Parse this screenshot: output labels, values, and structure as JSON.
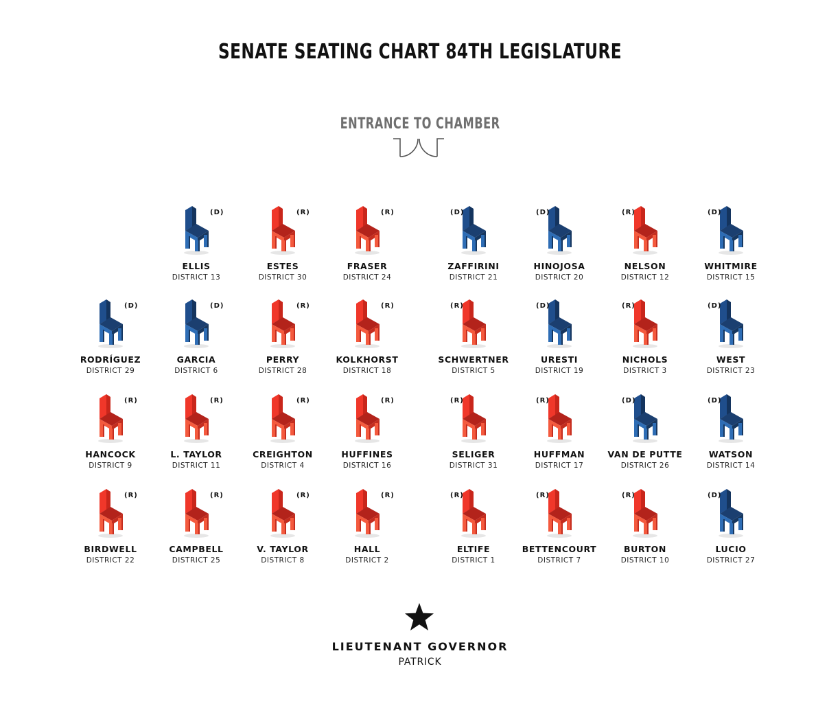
{
  "title": "SENATE SEATING CHART 84TH LEGISLATURE",
  "entrance_label": "ENTRANCE TO CHAMBER",
  "colors": {
    "democrat": "#1f4e8c",
    "republican": "#e8382a"
  },
  "rows": [
    [
      null,
      {
        "name": "ELLIS",
        "district": "DISTRICT 13",
        "party": "(D)"
      },
      {
        "name": "ESTES",
        "district": "DISTRICT 30",
        "party": "(R)"
      },
      {
        "name": "FRASER",
        "district": "DISTRICT 24",
        "party": "(R)"
      },
      {
        "name": "ZAFFIRINI",
        "district": "DISTRICT 21",
        "party": "(D)"
      },
      {
        "name": "HINOJOSA",
        "district": "DISTRICT 20",
        "party": "(D)"
      },
      {
        "name": "NELSON",
        "district": "DISTRICT 12",
        "party": "(R)"
      },
      {
        "name": "WHITMIRE",
        "district": "DISTRICT 15",
        "party": "(D)"
      }
    ],
    [
      {
        "name": "RODRÍGUEZ",
        "district": "DISTRICT 29",
        "party": "(D)"
      },
      {
        "name": "GARCIA",
        "district": "DISTRICT 6",
        "party": "(D)"
      },
      {
        "name": "PERRY",
        "district": "DISTRICT 28",
        "party": "(R)"
      },
      {
        "name": "KOLKHORST",
        "district": "DISTRICT 18",
        "party": "(R)"
      },
      {
        "name": "SCHWERTNER",
        "district": "DISTRICT 5",
        "party": "(R)"
      },
      {
        "name": "URESTI",
        "district": "DISTRICT 19",
        "party": "(D)"
      },
      {
        "name": "NICHOLS",
        "district": "DISTRICT 3",
        "party": "(R)"
      },
      {
        "name": "WEST",
        "district": "DISTRICT 23",
        "party": "(D)"
      }
    ],
    [
      {
        "name": "HANCOCK",
        "district": "DISTRICT 9",
        "party": "(R)"
      },
      {
        "name": "L. TAYLOR",
        "district": "DISTRICT 11",
        "party": "(R)"
      },
      {
        "name": "CREIGHTON",
        "district": "DISTRICT 4",
        "party": "(R)"
      },
      {
        "name": "HUFFINES",
        "district": "DISTRICT 16",
        "party": "(R)"
      },
      {
        "name": "SELIGER",
        "district": "DISTRICT 31",
        "party": "(R)"
      },
      {
        "name": "HUFFMAN",
        "district": "DISTRICT 17",
        "party": "(R)"
      },
      {
        "name": "VAN DE PUTTE",
        "district": "DISTRICT 26",
        "party": "(D)"
      },
      {
        "name": "WATSON",
        "district": "DISTRICT 14",
        "party": "(D)"
      }
    ],
    [
      {
        "name": "BIRDWELL",
        "district": "DISTRICT 22",
        "party": "(R)"
      },
      {
        "name": "CAMPBELL",
        "district": "DISTRICT 25",
        "party": "(R)"
      },
      {
        "name": "V. TAYLOR",
        "district": "DISTRICT 8",
        "party": "(R)"
      },
      {
        "name": "HALL",
        "district": "DISTRICT 2",
        "party": "(R)"
      },
      {
        "name": "ELTIFE",
        "district": "DISTRICT 1",
        "party": "(R)"
      },
      {
        "name": "BETTENCOURT",
        "district": "DISTRICT 7",
        "party": "(R)"
      },
      {
        "name": "BURTON",
        "district": "DISTRICT 10",
        "party": "(R)"
      },
      {
        "name": "LUCIO",
        "district": "DISTRICT 27",
        "party": "(D)"
      }
    ]
  ],
  "presiding": {
    "title": "LIEUTENANT GOVERNOR",
    "name": "PATRICK",
    "icon": "star-icon"
  }
}
